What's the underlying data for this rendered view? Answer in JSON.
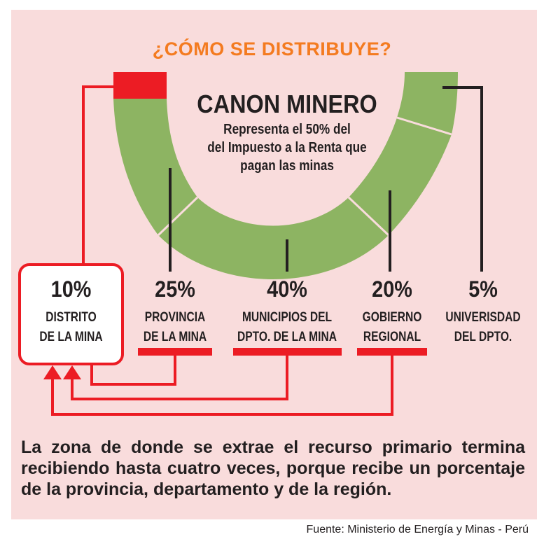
{
  "title": "¿CÓMO SE DISTRIBUYE?",
  "center": {
    "title": "CANON MINERO",
    "subtitle_lines": [
      "Representa el 50% del",
      "del Impuesto a la Renta que",
      "pagan las minas"
    ]
  },
  "shares": [
    {
      "percent": "10%",
      "line1": "DISTRITO",
      "line2": "DE LA MINA"
    },
    {
      "percent": "25%",
      "line1": "PROVINCIA",
      "line2": "DE LA MINA"
    },
    {
      "percent": "40%",
      "line1": "MUNICIPIOS DEL",
      "line2": "DPTO. DE LA MINA"
    },
    {
      "percent": "20%",
      "line1": "GOBIERNO",
      "line2": "REGIONAL"
    },
    {
      "percent": "5%",
      "line1": "UNIVERISDAD",
      "line2": "DEL DPTO."
    }
  ],
  "note": "La zona de donde se extrae el recurso primario termina recibiendo hasta cuatro veces, porque recibe un porcentaje de la provincia, departamento y de la región.",
  "source": "Fuente: Ministerio de Energía y Minas - Perú",
  "colors": {
    "background": "#f9dcdc",
    "ring_green": "#8db462",
    "ring_red": "#ec1c24",
    "title_orange": "#f47b20",
    "text": "#231f20"
  }
}
